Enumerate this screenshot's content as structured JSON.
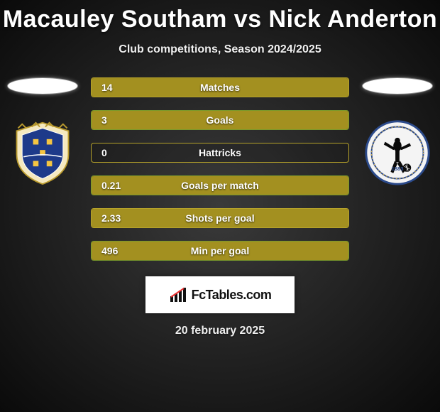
{
  "title": "Macauley Southam vs Nick Anderton",
  "subtitle": "Club competitions, Season 2024/2025",
  "date": "20 february 2025",
  "branding_text": "FcTables.com",
  "player_left": {
    "team_hint": "Stockport County"
  },
  "player_right": {
    "team_hint": "Bristol Rovers"
  },
  "bar_fill_color": "#a39020",
  "bar_border_color_primary": "#b5a22a",
  "bar_border_color_secondary": "#7a9a2b",
  "stats": [
    {
      "label": "Matches",
      "value": "14",
      "fill_pct": 100,
      "border": "primary"
    },
    {
      "label": "Goals",
      "value": "3",
      "fill_pct": 100,
      "border": "secondary"
    },
    {
      "label": "Hattricks",
      "value": "0",
      "fill_pct": 0,
      "border": "primary"
    },
    {
      "label": "Goals per match",
      "value": "0.21",
      "fill_pct": 100,
      "border": "secondary"
    },
    {
      "label": "Shots per goal",
      "value": "2.33",
      "fill_pct": 100,
      "border": "primary"
    },
    {
      "label": "Min per goal",
      "value": "496",
      "fill_pct": 100,
      "border": "secondary"
    }
  ]
}
